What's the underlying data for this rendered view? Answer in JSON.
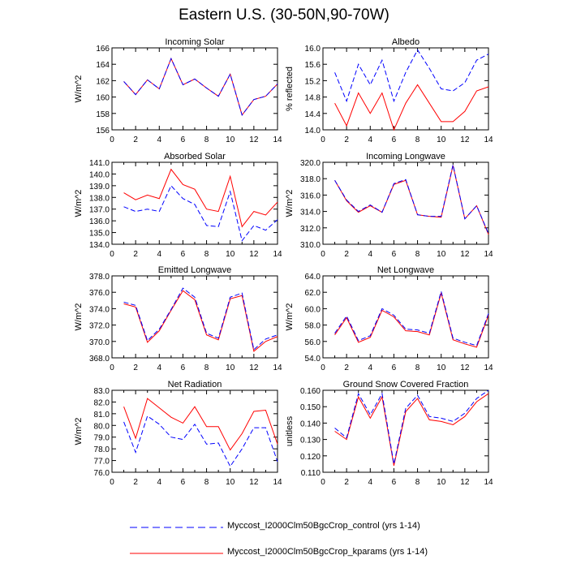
{
  "title": "Eastern U.S. (30-50N,90-70W)",
  "colors": {
    "control": "#0000ff",
    "kparams": "#ff0000"
  },
  "legend": {
    "control_label": "Myccost_I2000Clm50BgcCrop_control (yrs 1-14)",
    "kparams_label": "Myccost_I2000Clm50BgcCrop_kparams (yrs 1-14)"
  },
  "chart_data": [
    {
      "type": "line",
      "title": "Incoming Solar",
      "ylabel": "W/m^2",
      "xlim": [
        0,
        14
      ],
      "xticks": [
        0,
        2,
        4,
        6,
        8,
        10,
        12,
        14
      ],
      "ylim": [
        156,
        166
      ],
      "yticks": [
        156,
        158,
        160,
        162,
        164,
        166
      ],
      "ydec": 0,
      "x": [
        1,
        2,
        3,
        4,
        5,
        6,
        7,
        8,
        9,
        10,
        11,
        12,
        13,
        14
      ],
      "series": [
        {
          "name": "control",
          "values": [
            161.9,
            160.3,
            162.1,
            161.0,
            164.7,
            161.5,
            162.2,
            161.1,
            160.1,
            162.8,
            157.8,
            159.7,
            160.1,
            161.6
          ]
        },
        {
          "name": "kparams",
          "values": [
            161.9,
            160.3,
            162.1,
            161.0,
            164.7,
            161.5,
            162.2,
            161.1,
            160.1,
            162.8,
            157.8,
            159.7,
            160.1,
            161.6
          ]
        }
      ]
    },
    {
      "type": "line",
      "title": "Albedo",
      "ylabel": "% reflected",
      "xlim": [
        0,
        14
      ],
      "xticks": [
        0,
        2,
        4,
        6,
        8,
        10,
        12,
        14
      ],
      "ylim": [
        14.0,
        16.0
      ],
      "yticks": [
        14.0,
        14.4,
        14.8,
        15.2,
        15.6,
        16.0
      ],
      "ydec": 1,
      "x": [
        1,
        2,
        3,
        4,
        5,
        6,
        7,
        8,
        9,
        10,
        11,
        12,
        13,
        14
      ],
      "series": [
        {
          "name": "control",
          "values": [
            15.4,
            14.7,
            15.6,
            15.1,
            15.7,
            14.7,
            15.4,
            15.95,
            15.5,
            15.0,
            14.95,
            15.15,
            15.7,
            15.85
          ]
        },
        {
          "name": "kparams",
          "values": [
            14.65,
            14.1,
            14.9,
            14.4,
            14.9,
            14.0,
            14.65,
            15.1,
            14.65,
            14.2,
            14.2,
            14.45,
            14.95,
            15.05
          ]
        }
      ]
    },
    {
      "type": "line",
      "title": "Absorbed Solar",
      "ylabel": "W/m^2",
      "xlim": [
        0,
        14
      ],
      "xticks": [
        0,
        2,
        4,
        6,
        8,
        10,
        12,
        14
      ],
      "ylim": [
        134.0,
        141.0
      ],
      "yticks": [
        134.0,
        135.0,
        136.0,
        137.0,
        138.0,
        139.0,
        140.0,
        141.0
      ],
      "ydec": 1,
      "x": [
        1,
        2,
        3,
        4,
        5,
        6,
        7,
        8,
        9,
        10,
        11,
        12,
        13,
        14
      ],
      "series": [
        {
          "name": "control",
          "values": [
            137.2,
            136.8,
            137.0,
            136.8,
            139.0,
            137.9,
            137.4,
            135.6,
            135.5,
            138.5,
            134.3,
            135.6,
            135.2,
            136.1
          ]
        },
        {
          "name": "kparams",
          "values": [
            138.4,
            137.8,
            138.2,
            137.9,
            140.4,
            139.1,
            138.7,
            137.0,
            136.8,
            139.8,
            135.5,
            136.8,
            136.5,
            137.6
          ]
        }
      ]
    },
    {
      "type": "line",
      "title": "Incoming Longwave",
      "ylabel": "W/m^2",
      "xlim": [
        0,
        14
      ],
      "xticks": [
        0,
        2,
        4,
        6,
        8,
        10,
        12,
        14
      ],
      "ylim": [
        310.0,
        320.0
      ],
      "yticks": [
        310.0,
        312.0,
        314.0,
        316.0,
        318.0,
        320.0
      ],
      "ydec": 1,
      "x": [
        1,
        2,
        3,
        4,
        5,
        6,
        7,
        8,
        9,
        10,
        11,
        12,
        13,
        14
      ],
      "series": [
        {
          "name": "control",
          "values": [
            317.8,
            315.4,
            314.0,
            314.8,
            313.9,
            317.4,
            317.9,
            313.6,
            313.4,
            313.4,
            319.7,
            313.1,
            314.7,
            311.3
          ]
        },
        {
          "name": "kparams",
          "values": [
            317.8,
            315.3,
            313.9,
            314.7,
            313.9,
            317.3,
            317.8,
            313.6,
            313.4,
            313.3,
            319.6,
            313.1,
            314.7,
            311.2
          ]
        }
      ]
    },
    {
      "type": "line",
      "title": "Emitted Longwave",
      "ylabel": "W/m^2",
      "xlim": [
        0,
        14
      ],
      "xticks": [
        0,
        2,
        4,
        6,
        8,
        10,
        12,
        14
      ],
      "ylim": [
        368.0,
        378.0
      ],
      "yticks": [
        368.0,
        370.0,
        372.0,
        374.0,
        376.0,
        378.0
      ],
      "ydec": 1,
      "x": [
        1,
        2,
        3,
        4,
        5,
        6,
        7,
        8,
        9,
        10,
        11,
        12,
        13,
        14
      ],
      "series": [
        {
          "name": "control",
          "values": [
            374.8,
            374.4,
            370.1,
            371.5,
            373.9,
            376.5,
            375.4,
            371.0,
            370.4,
            375.4,
            375.9,
            369.0,
            370.3,
            370.8
          ]
        },
        {
          "name": "kparams",
          "values": [
            374.6,
            374.2,
            369.9,
            371.3,
            373.8,
            376.2,
            375.1,
            370.8,
            370.2,
            375.2,
            375.6,
            368.8,
            370.0,
            370.6
          ]
        }
      ]
    },
    {
      "type": "line",
      "title": "Net Longwave",
      "ylabel": "W/m^2",
      "xlim": [
        0,
        14
      ],
      "xticks": [
        0,
        2,
        4,
        6,
        8,
        10,
        12,
        14
      ],
      "ylim": [
        54.0,
        64.0
      ],
      "yticks": [
        54.0,
        56.0,
        58.0,
        60.0,
        62.0,
        64.0
      ],
      "ydec": 1,
      "x": [
        1,
        2,
        3,
        4,
        5,
        6,
        7,
        8,
        9,
        10,
        11,
        12,
        13,
        14
      ],
      "series": [
        {
          "name": "control",
          "values": [
            57.0,
            59.1,
            56.1,
            56.7,
            60.0,
            59.2,
            57.5,
            57.4,
            57.0,
            62.1,
            56.4,
            55.9,
            55.5,
            59.4
          ]
        },
        {
          "name": "kparams",
          "values": [
            56.8,
            58.9,
            55.9,
            56.5,
            59.8,
            59.0,
            57.3,
            57.2,
            56.8,
            61.9,
            56.2,
            55.7,
            55.3,
            59.2
          ]
        }
      ]
    },
    {
      "type": "line",
      "title": "Net Radiation",
      "ylabel": "W/m^2",
      "xlim": [
        0,
        14
      ],
      "xticks": [
        0,
        2,
        4,
        6,
        8,
        10,
        12,
        14
      ],
      "ylim": [
        76.0,
        83.0
      ],
      "yticks": [
        76.0,
        77.0,
        78.0,
        79.0,
        80.0,
        81.0,
        82.0,
        83.0
      ],
      "ydec": 1,
      "x": [
        1,
        2,
        3,
        4,
        5,
        6,
        7,
        8,
        9,
        10,
        11,
        12,
        13,
        14
      ],
      "series": [
        {
          "name": "control",
          "values": [
            80.3,
            77.7,
            80.8,
            80.1,
            79.0,
            78.8,
            80.1,
            78.4,
            78.5,
            76.5,
            78.0,
            79.8,
            79.8,
            76.9
          ]
        },
        {
          "name": "kparams",
          "values": [
            81.6,
            78.9,
            82.3,
            81.5,
            80.7,
            80.2,
            81.6,
            79.9,
            79.9,
            77.9,
            79.3,
            81.2,
            81.3,
            78.4
          ]
        }
      ]
    },
    {
      "type": "line",
      "title": "Ground Snow Covered Fraction",
      "ylabel": "unitless",
      "xlim": [
        0,
        14
      ],
      "xticks": [
        0,
        2,
        4,
        6,
        8,
        10,
        12,
        14
      ],
      "ylim": [
        0.11,
        0.16
      ],
      "yticks": [
        0.11,
        0.12,
        0.13,
        0.14,
        0.15,
        0.16
      ],
      "ydec": 3,
      "x": [
        1,
        2,
        3,
        4,
        5,
        6,
        7,
        8,
        9,
        10,
        11,
        12,
        13,
        14
      ],
      "series": [
        {
          "name": "control",
          "values": [
            0.137,
            0.131,
            0.158,
            0.145,
            0.158,
            0.115,
            0.149,
            0.157,
            0.144,
            0.143,
            0.141,
            0.146,
            0.155,
            0.16
          ]
        },
        {
          "name": "kparams",
          "values": [
            0.135,
            0.13,
            0.156,
            0.143,
            0.156,
            0.114,
            0.147,
            0.155,
            0.142,
            0.141,
            0.139,
            0.144,
            0.153,
            0.158
          ]
        }
      ]
    }
  ]
}
